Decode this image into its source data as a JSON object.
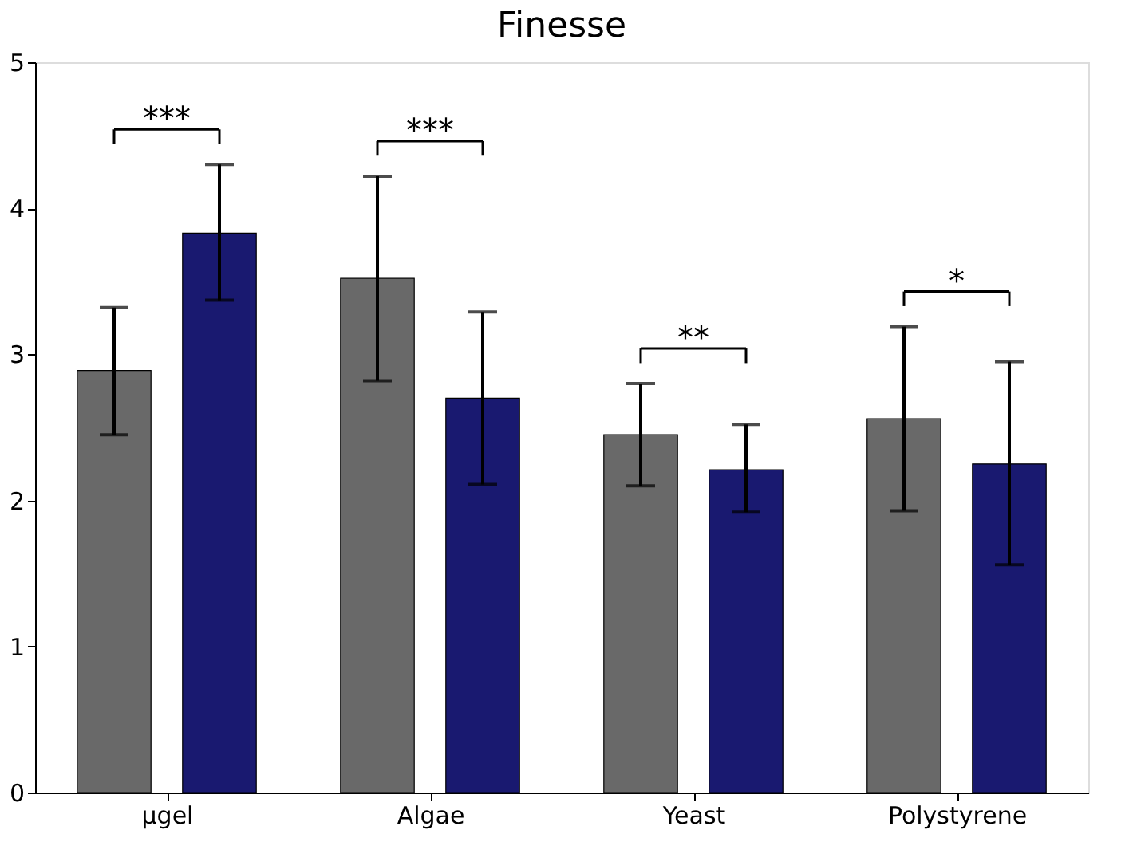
{
  "chart_data": {
    "type": "bar",
    "title": "Finesse",
    "categories": [
      "μgel",
      "Algae",
      "Yeast",
      "Polystyrene"
    ],
    "series": [
      {
        "color": "#696969",
        "values": [
          2.89,
          3.52,
          2.45,
          2.56
        ],
        "errors": [
          [
            2.45,
            3.32
          ],
          [
            2.82,
            4.22
          ],
          [
            2.1,
            2.8
          ],
          [
            1.93,
            3.19
          ]
        ]
      },
      {
        "color": "#191970",
        "values": [
          3.83,
          2.7,
          2.21,
          2.25
        ],
        "errors": [
          [
            3.37,
            4.3
          ],
          [
            2.11,
            3.29
          ],
          [
            1.92,
            2.52
          ],
          [
            1.56,
            2.95
          ]
        ]
      }
    ],
    "annotations": [
      "***",
      "***",
      "**",
      "*"
    ],
    "ylim": [
      0,
      5
    ],
    "yticks": [
      0,
      1,
      2,
      3,
      4,
      5
    ],
    "grid": false,
    "legend": false
  }
}
